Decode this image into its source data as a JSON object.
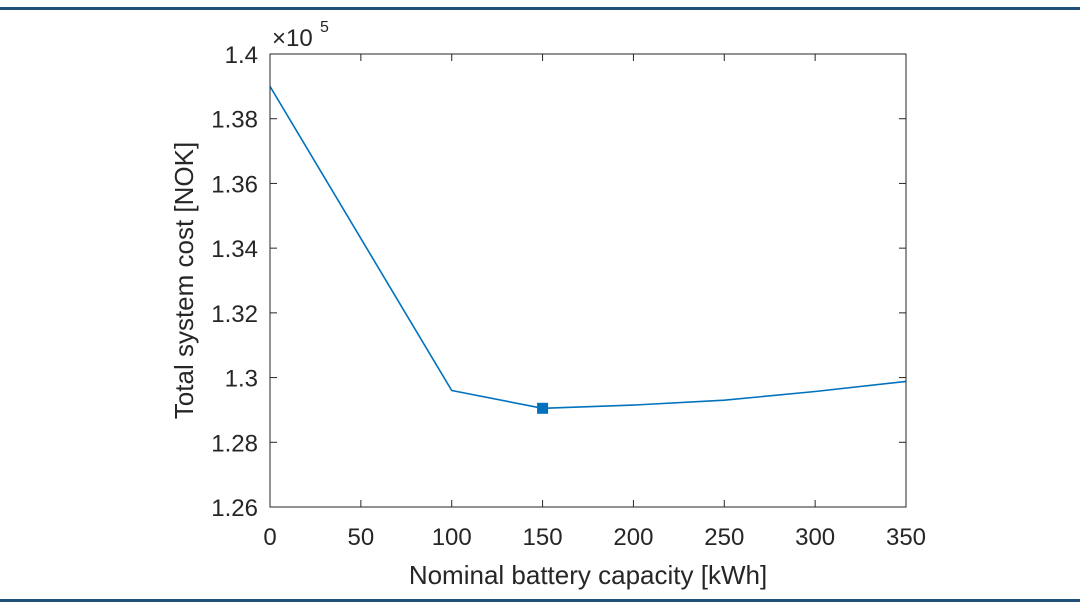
{
  "colors": {
    "frame_rule": "#1f4e79",
    "series_line": "#0072bd",
    "axes": "#262626",
    "text": "#262626",
    "background": "#ffffff"
  },
  "chart_data": {
    "type": "line",
    "title": "",
    "xlabel": "Nominal battery capacity [kWh]",
    "ylabel": "Total system cost [NOK]",
    "y_exponent_label": "×10",
    "y_exponent_power": "5",
    "xlim": [
      0,
      350
    ],
    "ylim": [
      1.26,
      1.4
    ],
    "x_ticks": [
      0,
      50,
      100,
      150,
      200,
      250,
      300,
      350
    ],
    "x_tick_labels": [
      "0",
      "50",
      "100",
      "150",
      "200",
      "250",
      "300",
      "350"
    ],
    "y_ticks": [
      1.26,
      1.28,
      1.3,
      1.32,
      1.34,
      1.36,
      1.38,
      1.4
    ],
    "y_tick_labels": [
      "1.26",
      "1.28",
      "1.3",
      "1.32",
      "1.34",
      "1.36",
      "1.38",
      "1.4"
    ],
    "grid": false,
    "box": true,
    "series": [
      {
        "color": "#0072bd",
        "x": [
          0,
          100,
          150,
          200,
          250,
          300,
          350
        ],
        "y": [
          1.39,
          1.296,
          1.2905,
          1.2915,
          1.293,
          1.2957,
          1.2988
        ]
      }
    ],
    "markers": [
      {
        "shape": "square",
        "x": 150,
        "y": 1.2905,
        "color": "#0072bd"
      }
    ]
  }
}
